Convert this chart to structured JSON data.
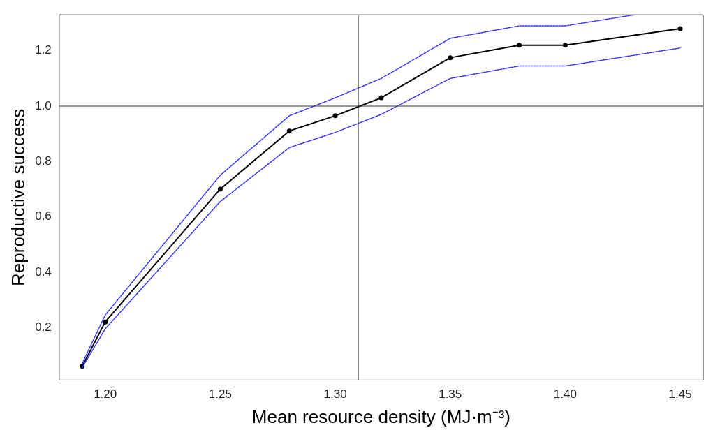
{
  "chart_data": {
    "type": "line",
    "xlabel": "Mean resource density (MJ·m⁻³)",
    "ylabel": "Reproductive success",
    "x": [
      1.19,
      1.2,
      1.25,
      1.28,
      1.3,
      1.32,
      1.35,
      1.38,
      1.4,
      1.45
    ],
    "series": [
      {
        "color": "#000000",
        "values": [
          0.06,
          0.22,
          0.7,
          0.91,
          0.965,
          1.03,
          1.175,
          1.22,
          1.22,
          1.28
        ]
      },
      {
        "color": "#3333ff",
        "marker": "none",
        "line_style": "dotted",
        "values": [
          0.055,
          0.195,
          0.655,
          0.85,
          0.905,
          0.97,
          1.1,
          1.145,
          1.145,
          1.21
        ]
      },
      {
        "color": "#3333ff",
        "marker": "none",
        "line_style": "dotted",
        "x": [
          1.19,
          1.2,
          1.25,
          1.28,
          1.3,
          1.32,
          1.35,
          1.38,
          1.4,
          1.43
        ],
        "values": [
          0.07,
          0.245,
          0.75,
          0.965,
          1.03,
          1.1,
          1.245,
          1.29,
          1.29,
          1.33
        ]
      }
    ],
    "xlim": [
      1.18,
      1.46
    ],
    "ylim": [
      0.01,
      1.33
    ],
    "xticks": [
      {
        "value": 1.2,
        "label": "1.20"
      },
      {
        "value": 1.25,
        "label": "1.25"
      },
      {
        "value": 1.3,
        "label": "1.30"
      },
      {
        "value": 1.35,
        "label": "1.35"
      },
      {
        "value": 1.4,
        "label": "1.40"
      },
      {
        "value": 1.45,
        "label": "1.45"
      }
    ],
    "yticks": [
      0.2,
      0.4,
      0.6,
      0.8,
      {
        "value": 1.0,
        "label": "1.0"
      },
      1.2
    ],
    "ref_lines": [
      {
        "axis": "y",
        "value": 1.0,
        "color": "#333333"
      },
      {
        "axis": "x",
        "value": 1.31,
        "color": "#333333"
      }
    ],
    "grid": false,
    "legend": false,
    "marker": "circle",
    "line_style": "solid"
  }
}
